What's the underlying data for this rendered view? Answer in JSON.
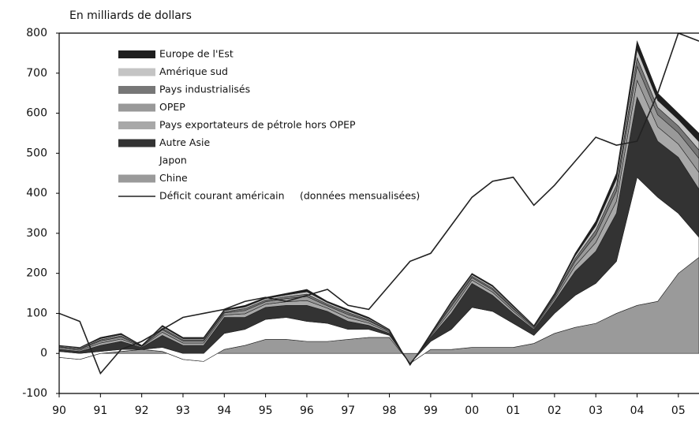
{
  "chart_data": {
    "type": "area",
    "y_label": "En milliards de dollars",
    "annotation": "(données mensualisées)",
    "x": [
      1990,
      1990.5,
      1991,
      1991.5,
      1992,
      1992.5,
      1993,
      1993.5,
      1994,
      1994.5,
      1995,
      1995.5,
      1996,
      1996.5,
      1997,
      1997.5,
      1998,
      1998.5,
      1999,
      1999.5,
      2000,
      2000.5,
      2001,
      2001.5,
      2002,
      2002.5,
      2003,
      2003.5,
      2004,
      2004.5,
      2005,
      2005.5
    ],
    "xlim": [
      1990,
      2005.5
    ],
    "xticks": [
      {
        "value": 1990,
        "label": "90"
      },
      {
        "value": 1991,
        "label": "91"
      },
      {
        "value": 1992,
        "label": "92"
      },
      {
        "value": 1993,
        "label": "93"
      },
      {
        "value": 1994,
        "label": "94"
      },
      {
        "value": 1995,
        "label": "95"
      },
      {
        "value": 1996,
        "label": "96"
      },
      {
        "value": 1997,
        "label": "97"
      },
      {
        "value": 1998,
        "label": "98"
      },
      {
        "value": 1999,
        "label": "99"
      },
      {
        "value": 2000,
        "label": "00"
      },
      {
        "value": 2001,
        "label": "01"
      },
      {
        "value": 2002,
        "label": "02"
      },
      {
        "value": 2003,
        "label": "03"
      },
      {
        "value": 2004,
        "label": "04"
      },
      {
        "value": 2005,
        "label": "05"
      }
    ],
    "ylim": [
      -100,
      800
    ],
    "yticks": [
      -100,
      0,
      100,
      200,
      300,
      400,
      500,
      600,
      700,
      800
    ],
    "series": [
      {
        "name": "Chine",
        "color": "#9a9a9a",
        "values": [
          -10,
          -15,
          0,
          5,
          10,
          5,
          -15,
          -20,
          10,
          20,
          35,
          35,
          30,
          30,
          35,
          40,
          40,
          -25,
          10,
          10,
          15,
          15,
          15,
          25,
          50,
          65,
          75,
          100,
          120,
          130,
          200,
          240
        ]
      },
      {
        "name": "Japon",
        "color": "#ffffff",
        "values": [
          15,
          15,
          5,
          5,
          0,
          10,
          15,
          20,
          40,
          40,
          50,
          55,
          50,
          45,
          25,
          20,
          5,
          0,
          20,
          50,
          100,
          90,
          60,
          20,
          50,
          80,
          100,
          130,
          320,
          260,
          150,
          50
        ]
      },
      {
        "name": "Autre Asie",
        "color": "#333333",
        "values": [
          5,
          5,
          15,
          20,
          5,
          30,
          20,
          20,
          40,
          30,
          30,
          30,
          40,
          30,
          20,
          10,
          5,
          0,
          10,
          40,
          60,
          40,
          25,
          15,
          30,
          60,
          80,
          120,
          200,
          140,
          140,
          120
        ]
      },
      {
        "name": "Pays exportateurs de pétrole hors OPEP",
        "color": "#a8a8a8",
        "values": [
          3,
          3,
          6,
          6,
          2,
          8,
          6,
          6,
          6,
          9,
          8,
          9,
          12,
          8,
          9,
          6,
          3,
          -2,
          3,
          9,
          8,
          8,
          6,
          3,
          6,
          14,
          22,
          30,
          42,
          36,
          33,
          42
        ]
      },
      {
        "name": "OPEP",
        "color": "#999999",
        "values": [
          3,
          3,
          5,
          5,
          1,
          6,
          5,
          5,
          5,
          8,
          6,
          8,
          10,
          6,
          8,
          5,
          3,
          -1,
          3,
          8,
          6,
          6,
          5,
          3,
          5,
          11,
          19,
          25,
          35,
          30,
          28,
          35
        ]
      },
      {
        "name": "Pays industrialisés",
        "color": "#777777",
        "values": [
          1,
          1,
          3,
          3,
          1,
          4,
          3,
          3,
          3,
          5,
          4,
          5,
          6,
          4,
          5,
          3,
          1,
          -1,
          1,
          5,
          4,
          4,
          3,
          1,
          3,
          7,
          12,
          15,
          21,
          18,
          17,
          21
        ]
      },
      {
        "name": "Amérique sud",
        "color": "#c4c4c4",
        "values": [
          2,
          2,
          3,
          3,
          1,
          4,
          3,
          3,
          3,
          4,
          4,
          4,
          6,
          4,
          4,
          3,
          2,
          -1,
          2,
          4,
          4,
          4,
          3,
          2,
          3,
          7,
          11,
          15,
          21,
          18,
          16,
          21
        ]
      },
      {
        "name": "Europe de l'Est",
        "color": "#1e1e1e",
        "values": [
          1,
          1,
          3,
          3,
          0,
          3,
          3,
          3,
          3,
          4,
          3,
          4,
          6,
          3,
          4,
          3,
          1,
          0,
          1,
          4,
          3,
          3,
          3,
          1,
          3,
          6,
          11,
          15,
          21,
          18,
          16,
          21
        ]
      },
      {
        "name": "Déficit courant américain",
        "type": "line",
        "color": "#222222",
        "values": [
          100,
          80,
          -50,
          10,
          30,
          60,
          90,
          100,
          110,
          130,
          140,
          130,
          145,
          160,
          120,
          110,
          170,
          230,
          250,
          320,
          390,
          430,
          440,
          370,
          420,
          480,
          540,
          520,
          530,
          650,
          800,
          780
        ]
      }
    ]
  }
}
